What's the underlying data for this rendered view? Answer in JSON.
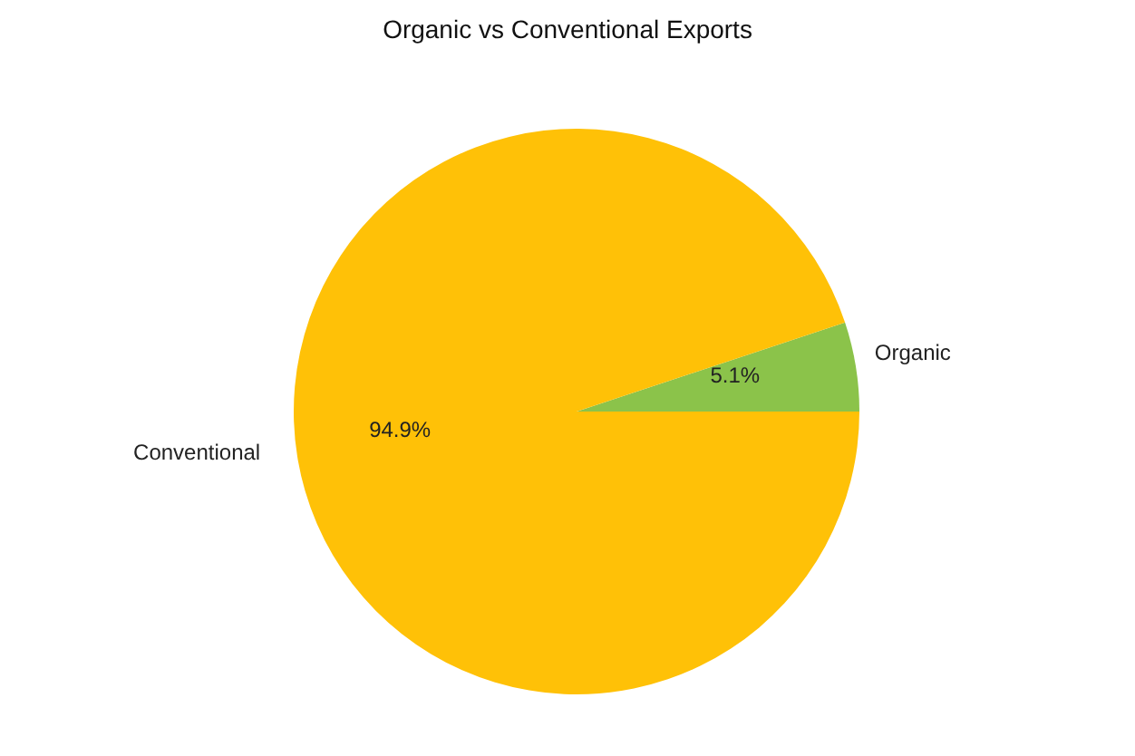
{
  "chart_data": {
    "type": "pie",
    "title": "Organic vs Conventional Exports",
    "categories": [
      "Organic",
      "Conventional"
    ],
    "values": [
      5.1,
      94.9
    ],
    "colors": [
      "#8bc34a",
      "#ffc107"
    ],
    "value_labels": [
      "5.1%",
      "94.9%"
    ]
  }
}
